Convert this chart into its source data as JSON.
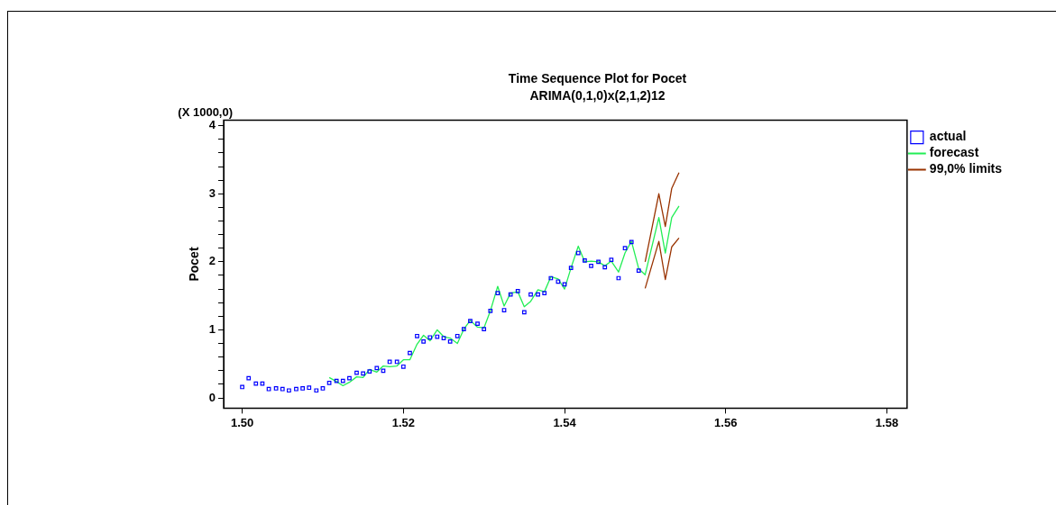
{
  "chart_data": {
    "type": "line",
    "title": "Time Sequence Plot for Pocet",
    "subtitle": "ARIMA(0,1,0)x(2,1,2)12",
    "ylabel": "Pocet",
    "annotations": [
      "(X 1000,0)"
    ],
    "xlim": [
      1.4977,
      1.5825
    ],
    "xticks": [
      {
        "value": 1.5,
        "label": "1.50"
      },
      {
        "value": 1.52,
        "label": "1.52"
      },
      {
        "value": 1.54,
        "label": "1.54"
      },
      {
        "value": 1.56,
        "label": "1.56"
      },
      {
        "value": 1.58,
        "label": "1.58"
      }
    ],
    "ylim": [
      -0.15,
      4.08
    ],
    "yticks": [
      0,
      {
        "value": 0.2,
        "label": null
      },
      {
        "value": 0.4,
        "label": null
      },
      {
        "value": 0.6,
        "label": null
      },
      {
        "value": 0.8,
        "label": null
      },
      1,
      {
        "value": 1.2,
        "label": null
      },
      {
        "value": 1.4,
        "label": null
      },
      {
        "value": 1.6,
        "label": null
      },
      {
        "value": 1.8,
        "label": null
      },
      2,
      {
        "value": 2.2,
        "label": null
      },
      {
        "value": 2.4,
        "label": null
      },
      {
        "value": 2.6,
        "label": null
      },
      {
        "value": 2.8,
        "label": null
      },
      3,
      {
        "value": 3.2,
        "label": null
      },
      {
        "value": 3.4,
        "label": null
      },
      {
        "value": 3.6,
        "label": null
      },
      {
        "value": 3.8,
        "label": null
      },
      4
    ],
    "grid": false,
    "legend": "top right",
    "series": [
      {
        "name": "actual",
        "type": "scatter",
        "marker": "square",
        "color": "#0000ff",
        "x": [
          1.5,
          1.5008,
          1.5017,
          1.5025,
          1.5033,
          1.5042,
          1.505,
          1.5058,
          1.5067,
          1.5075,
          1.5083,
          1.5092,
          1.51,
          1.5108,
          1.5117,
          1.5125,
          1.5133,
          1.5142,
          1.515,
          1.5158,
          1.5167,
          1.5175,
          1.5183,
          1.5192,
          1.52,
          1.5208,
          1.5217,
          1.5225,
          1.5233,
          1.5242,
          1.525,
          1.5258,
          1.5267,
          1.5275,
          1.5283,
          1.5292,
          1.53,
          1.5308,
          1.5317,
          1.5325,
          1.5333,
          1.5342,
          1.535,
          1.5358,
          1.5367,
          1.5375,
          1.5383,
          1.5392,
          1.54,
          1.5408,
          1.5417,
          1.5425,
          1.5433,
          1.5442,
          1.545,
          1.5458,
          1.5467,
          1.5475,
          1.5483,
          1.5492
        ],
        "values": [
          0.16,
          0.29,
          0.21,
          0.21,
          0.13,
          0.14,
          0.13,
          0.11,
          0.13,
          0.14,
          0.15,
          0.11,
          0.14,
          0.22,
          0.25,
          0.25,
          0.29,
          0.37,
          0.36,
          0.39,
          0.44,
          0.4,
          0.53,
          0.53,
          0.46,
          0.66,
          0.91,
          0.83,
          0.89,
          0.9,
          0.88,
          0.83,
          0.91,
          1.01,
          1.13,
          1.09,
          1.01,
          1.28,
          1.54,
          1.29,
          1.52,
          1.57,
          1.26,
          1.52,
          1.52,
          1.54,
          1.76,
          1.71,
          1.67,
          1.91,
          2.13,
          2.02,
          1.94,
          2.0,
          1.92,
          2.03,
          1.76,
          2.2,
          2.29,
          1.87
        ]
      },
      {
        "name": "forecast",
        "type": "line",
        "marker": "none",
        "color": "#22ee55",
        "x": [
          1.5108,
          1.5117,
          1.5125,
          1.5133,
          1.5142,
          1.515,
          1.5158,
          1.5167,
          1.5175,
          1.5183,
          1.5192,
          1.52,
          1.5208,
          1.5217,
          1.5225,
          1.5233,
          1.5242,
          1.525,
          1.5258,
          1.5267,
          1.5275,
          1.5283,
          1.5292,
          1.53,
          1.5308,
          1.5317,
          1.5325,
          1.5333,
          1.5342,
          1.535,
          1.5358,
          1.5367,
          1.5375,
          1.5383,
          1.5392,
          1.54,
          1.5408,
          1.5417,
          1.5425,
          1.5433,
          1.5442,
          1.545,
          1.5458,
          1.5467,
          1.5475,
          1.5483,
          1.5492,
          1.55,
          1.5517,
          1.5525,
          1.5533,
          1.5542
        ],
        "values": [
          0.3,
          0.24,
          0.18,
          0.23,
          0.31,
          0.3,
          0.42,
          0.38,
          0.47,
          0.46,
          0.47,
          0.56,
          0.56,
          0.79,
          0.92,
          0.84,
          1.0,
          0.9,
          0.88,
          0.8,
          1.01,
          1.14,
          1.04,
          1.03,
          1.28,
          1.64,
          1.35,
          1.54,
          1.56,
          1.34,
          1.42,
          1.59,
          1.56,
          1.78,
          1.75,
          1.6,
          1.91,
          2.23,
          2.0,
          2.01,
          2.0,
          1.94,
          2.01,
          1.85,
          2.13,
          2.3,
          1.9,
          1.81,
          2.65,
          2.13,
          2.65,
          2.82
        ]
      },
      {
        "name": "99,0% limits",
        "type": "line",
        "marker": "none",
        "color": "#993300",
        "x": [
          1.55,
          1.5517,
          1.5525,
          1.5533,
          1.5542
        ],
        "values": [
          1.61,
          2.3,
          1.74,
          2.22,
          2.35
        ]
      },
      {
        "type": "line",
        "marker": "none",
        "color": "#993300",
        "x": [
          1.55,
          1.5517,
          1.5525,
          1.5533,
          1.5542
        ],
        "values": [
          2.0,
          3.0,
          2.52,
          3.08,
          3.31
        ]
      }
    ]
  }
}
